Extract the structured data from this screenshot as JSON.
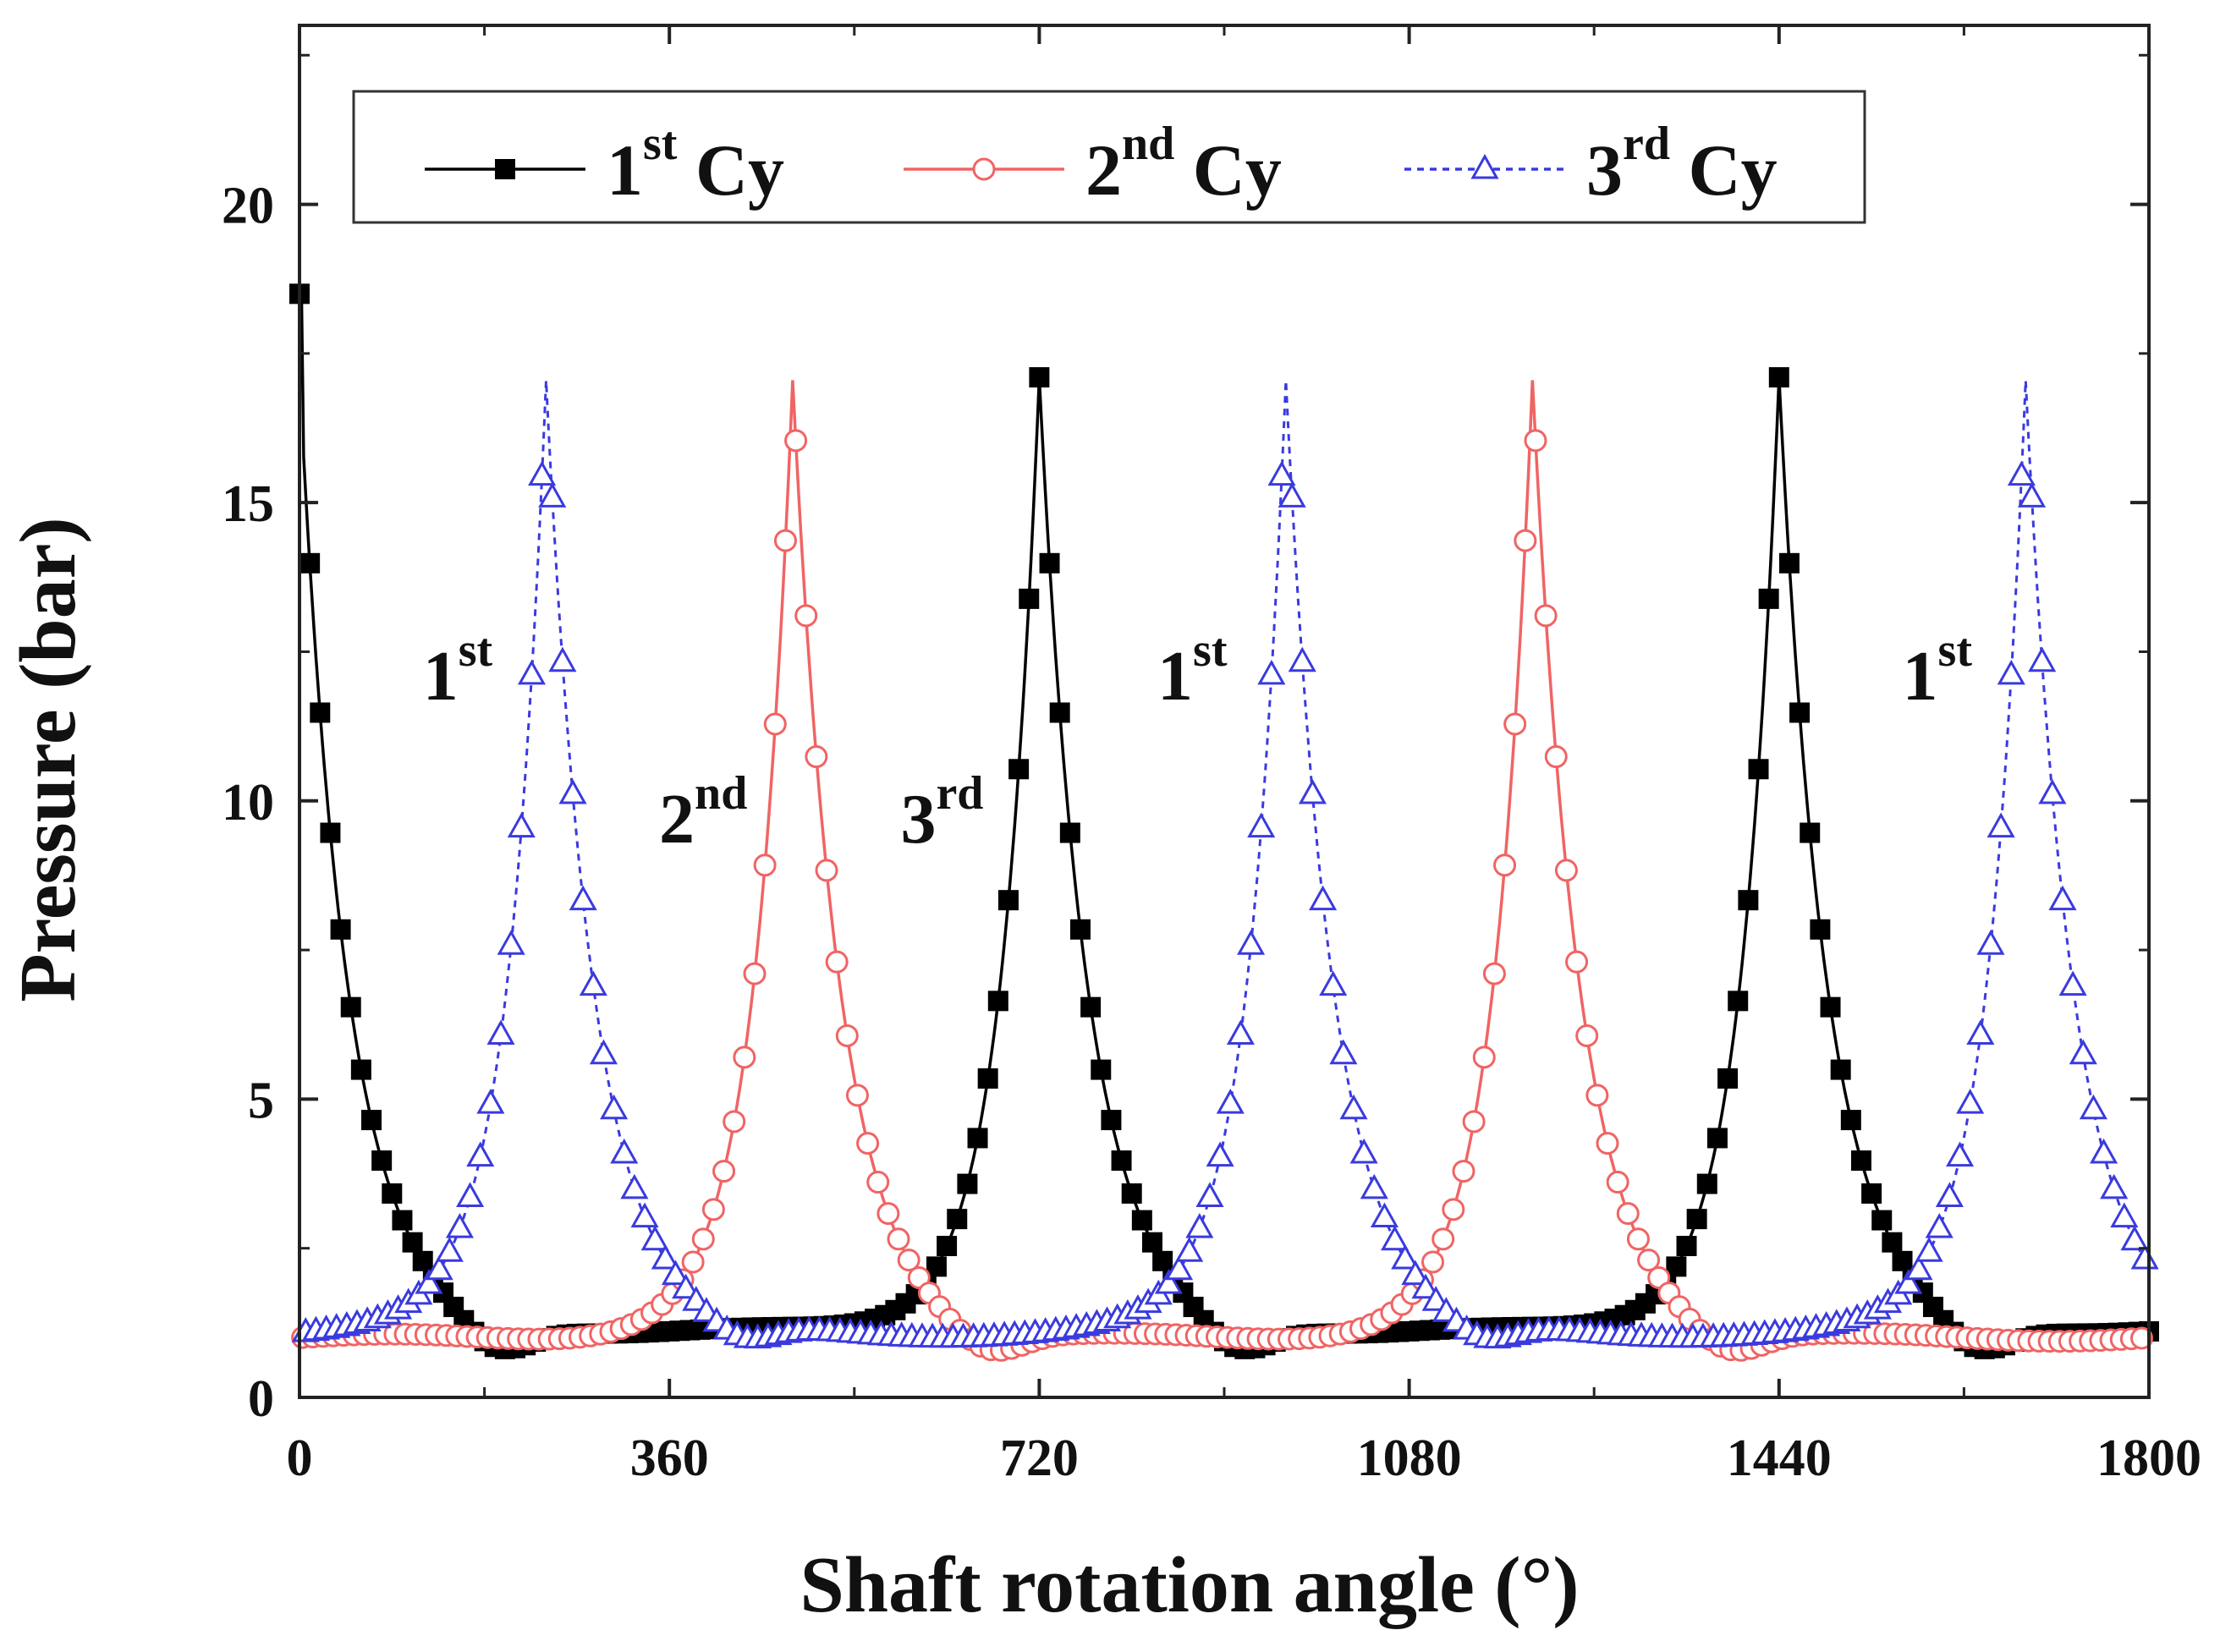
{
  "chart_data": {
    "type": "line",
    "xlabel": "Shaft rotation angle (°)",
    "ylabel": "Pressure (bar)",
    "xlim": [
      0,
      1800
    ],
    "ylim": [
      0,
      23
    ],
    "xticks": [
      0,
      360,
      720,
      1080,
      1440,
      1800
    ],
    "yticks": [
      0,
      5,
      10,
      15,
      20
    ],
    "xtick_labels": [
      "0",
      "360",
      "720",
      "1080",
      "1440",
      "1800"
    ],
    "ytick_labels": [
      "0",
      "5",
      "10",
      "15",
      "20"
    ],
    "legend_position": "top",
    "series": [
      {
        "name": "1st Cy",
        "label_base": "1",
        "label_sup": "st",
        "label_suffix": " Cy",
        "color": "#000000",
        "marker": "square-filled",
        "line_style": "solid",
        "peak_angles": [
          0,
          720,
          1440
        ],
        "peak_pressure": 17.1,
        "first_point_pressure": 18.5,
        "baseline_pressure": 1.1,
        "dip_pressure": 0.6
      },
      {
        "name": "2nd Cy",
        "label_base": "2",
        "label_sup": "nd",
        "label_suffix": " Cy",
        "color": "#f06464",
        "marker": "circle-open",
        "line_style": "solid",
        "peak_angles": [
          480,
          1200
        ],
        "peak_pressure": 17.0,
        "baseline_pressure": 1.0,
        "dip_pressure": 0.6
      },
      {
        "name": "3rd Cy",
        "label_base": "3",
        "label_sup": "rd",
        "label_suffix": " Cy",
        "color": "#3a3adf",
        "marker": "triangle-open",
        "line_style": "dotted",
        "peak_angles": [
          240,
          960,
          1680
        ],
        "peak_pressure": 17.1,
        "baseline_pressure": 1.05,
        "dip_pressure": 0.7
      }
    ],
    "annotations": [
      {
        "base": "1",
        "sup": "st",
        "x": 120,
        "y": 11.7
      },
      {
        "base": "2",
        "sup": "nd",
        "x": 350,
        "y": 9.3
      },
      {
        "base": "3",
        "sup": "rd",
        "x": 585,
        "y": 9.3
      },
      {
        "base": "1",
        "sup": "st",
        "x": 835,
        "y": 11.7
      },
      {
        "base": "1",
        "sup": "st",
        "x": 1560,
        "y": 11.7
      }
    ]
  }
}
